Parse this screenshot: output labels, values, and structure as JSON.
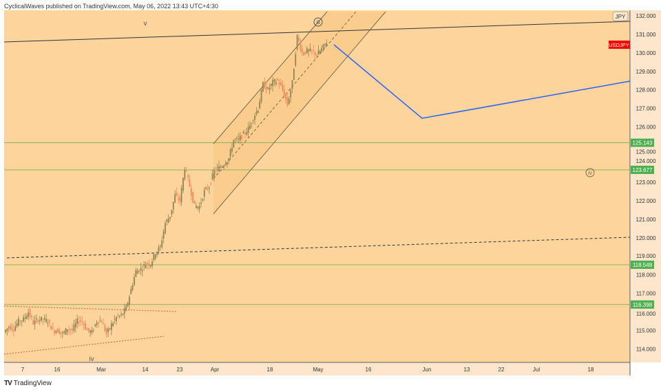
{
  "header": {
    "publisher": "CyclicalWaves published on TradingView.com, May 06, 2022 13:43 UTC+4:30"
  },
  "footer": {
    "brand": "TradingView",
    "logo": "TV"
  },
  "symbol": {
    "name": "USDJPY",
    "currency": "JPY",
    "badge_color": "#ff0000"
  },
  "price_axis": {
    "ticks": [
      "114.000",
      "115.000",
      "116.000",
      "117.000",
      "118.000",
      "119.000",
      "120.000",
      "121.000",
      "122.000",
      "123.000",
      "124.000",
      "125.000",
      "126.000",
      "127.000",
      "128.000",
      "129.000",
      "130.000",
      "131.000",
      "132.000"
    ]
  },
  "levels": [
    {
      "label": "125.143",
      "value": 125.143
    },
    {
      "label": "123.677",
      "value": 123.677
    },
    {
      "label": "118.548",
      "value": 118.548
    },
    {
      "label": "116.398",
      "value": 116.398
    }
  ],
  "time_axis": {
    "ticks": [
      "7",
      "16",
      "Mar",
      "14",
      "23",
      "Apr",
      "18",
      "May",
      "16",
      "Jun",
      "13",
      "22",
      "Jul",
      "18"
    ]
  },
  "wave_labels": {
    "v": "v",
    "iii": "iii",
    "iv_circle": "iv",
    "iv": "iv"
  },
  "colors": {
    "background": "#fcd49c",
    "level_line": "#8fb25a",
    "level_label": "#4caf50",
    "projection": "#2962ff",
    "up": "#8f8350",
    "down": "#f2885c"
  },
  "closes": [
    114.9,
    115.2,
    115.1,
    115.5,
    115.6,
    116.0,
    115.4,
    115.6,
    115.6,
    115.5,
    115.0,
    115.0,
    114.8,
    115.1,
    115.0,
    115.5,
    115.5,
    115.0,
    114.9,
    115.5,
    115.5,
    114.8,
    115.3,
    115.7,
    115.8,
    116.2,
    117.2,
    118.2,
    118.3,
    118.6,
    118.6,
    119.2,
    119.5,
    120.8,
    121.2,
    122.3,
    122.0,
    123.8,
    122.8,
    121.7,
    121.7,
    122.5,
    122.8,
    123.6,
    123.8,
    124.0,
    124.3,
    125.3,
    125.3,
    125.6,
    125.9,
    126.5,
    127.0,
    128.3,
    128.0,
    128.4,
    128.5,
    128.0,
    127.2,
    128.4,
    130.9,
    130.0,
    130.1,
    130.1,
    129.9,
    130.2,
    130.6
  ]
}
